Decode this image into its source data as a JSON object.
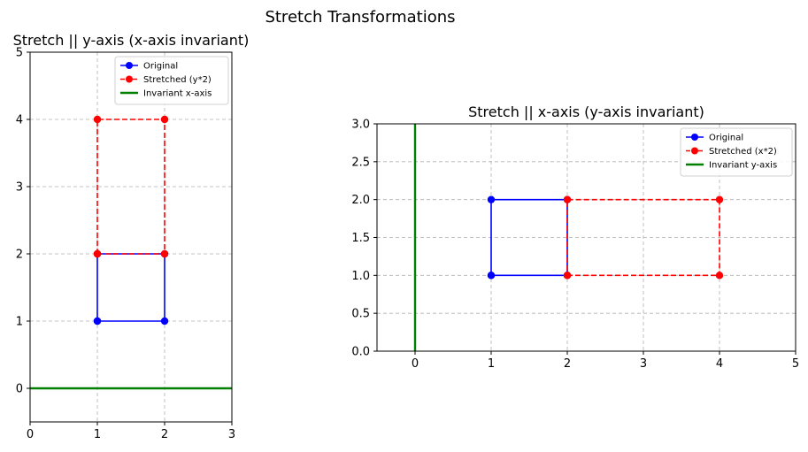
{
  "figure_title": "Stretch Transformations",
  "chart_data": [
    {
      "type": "line",
      "title": "Stretch || y-axis (x-axis invariant)",
      "xlabel": "",
      "ylabel": "",
      "xlim": [
        0,
        3
      ],
      "ylim": [
        -0.5,
        5
      ],
      "xticks": [
        0,
        1,
        2,
        3
      ],
      "yticks": [
        0,
        1,
        2,
        3,
        4,
        5
      ],
      "xtick_labels": [
        "0",
        "1",
        "2",
        "3"
      ],
      "ytick_labels": [
        "0",
        "1",
        "2",
        "3",
        "4",
        "5"
      ],
      "grid": true,
      "legend": "upper right",
      "series": [
        {
          "name": "Original",
          "color": "#0000ff",
          "style": "solid",
          "marker": "circle",
          "x": [
            1,
            2,
            2,
            1,
            1
          ],
          "y": [
            1,
            1,
            2,
            2,
            1
          ]
        },
        {
          "name": "Stretched (y*2)",
          "color": "#ff0000",
          "style": "dashed",
          "marker": "circle",
          "x": [
            1,
            2,
            2,
            1,
            1
          ],
          "y": [
            2,
            2,
            4,
            4,
            2
          ]
        },
        {
          "name": "Invariant x-axis",
          "color": "#008000",
          "style": "solid",
          "marker": "none",
          "x": [
            0,
            3
          ],
          "y": [
            0,
            0
          ]
        }
      ]
    },
    {
      "type": "line",
      "title": "Stretch || x-axis (y-axis invariant)",
      "xlabel": "",
      "ylabel": "",
      "xlim": [
        -0.5,
        5
      ],
      "ylim": [
        0,
        3
      ],
      "xticks": [
        0,
        1,
        2,
        3,
        4,
        5
      ],
      "yticks": [
        0,
        0.5,
        1,
        1.5,
        2,
        2.5,
        3
      ],
      "xtick_labels": [
        "0",
        "1",
        "2",
        "3",
        "4",
        "5"
      ],
      "ytick_labels": [
        "0.0",
        "0.5",
        "1.0",
        "1.5",
        "2.0",
        "2.5",
        "3.0"
      ],
      "grid": true,
      "legend": "upper right",
      "series": [
        {
          "name": "Original",
          "color": "#0000ff",
          "style": "solid",
          "marker": "circle",
          "x": [
            1,
            2,
            2,
            1,
            1
          ],
          "y": [
            1,
            1,
            2,
            2,
            1
          ]
        },
        {
          "name": "Stretched (x*2)",
          "color": "#ff0000",
          "style": "dashed",
          "marker": "circle",
          "x": [
            2,
            4,
            4,
            2,
            2
          ],
          "y": [
            1,
            1,
            2,
            2,
            1
          ]
        },
        {
          "name": "Invariant y-axis",
          "color": "#008000",
          "style": "solid",
          "marker": "none",
          "x": [
            0,
            0
          ],
          "y": [
            0,
            3
          ]
        }
      ]
    }
  ]
}
